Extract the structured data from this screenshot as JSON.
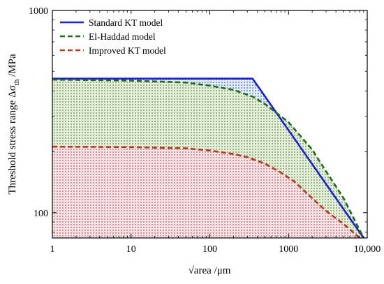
{
  "chart_data": {
    "type": "line",
    "title": "",
    "xlabel": "√area /μm",
    "ylabel_main": "Threshold stress range Δσ",
    "ylabel_sub": "th",
    "ylabel_unit": " /MPa",
    "x_scale": "log",
    "y_scale": "log",
    "xlim": [
      1,
      10000
    ],
    "ylim": [
      75,
      1000
    ],
    "x_ticks": [
      {
        "value": 1,
        "label": "1"
      },
      {
        "value": 10,
        "label": "10"
      },
      {
        "value": 100,
        "label": "100"
      },
      {
        "value": 1000,
        "label": "1000"
      },
      {
        "value": 10000,
        "label": "10,000"
      }
    ],
    "y_ticks": [
      {
        "value": 100,
        "label": "100"
      },
      {
        "value": 1000,
        "label": "1000"
      }
    ],
    "legend_position": "top-left",
    "series": [
      {
        "name": "Standard KT model",
        "style": "solid",
        "color": "#1f1fd6",
        "fill": "#3b6fd8",
        "x": [
          1,
          350,
          9000
        ],
        "y": [
          460,
          460,
          75
        ]
      },
      {
        "name": "El-Haddad model",
        "style": "dashed",
        "color": "#1e6b1e",
        "fill": "#5a9a3a",
        "x": [
          1,
          10,
          50,
          100,
          200,
          350,
          500,
          1000,
          2000,
          3000,
          5000,
          9000
        ],
        "y": [
          455,
          450,
          440,
          425,
          405,
          375,
          345,
          280,
          205,
          160,
          118,
          75
        ]
      },
      {
        "name": "Improved KT model",
        "style": "dashed",
        "color": "#b03a1a",
        "fill": "#d07878",
        "x": [
          1,
          10,
          50,
          100,
          200,
          300,
          500,
          800,
          1200,
          2000,
          3000,
          5000,
          8000
        ],
        "y": [
          212,
          211,
          208,
          203,
          195,
          188,
          175,
          158,
          142,
          118,
          102,
          88,
          75
        ]
      }
    ]
  }
}
